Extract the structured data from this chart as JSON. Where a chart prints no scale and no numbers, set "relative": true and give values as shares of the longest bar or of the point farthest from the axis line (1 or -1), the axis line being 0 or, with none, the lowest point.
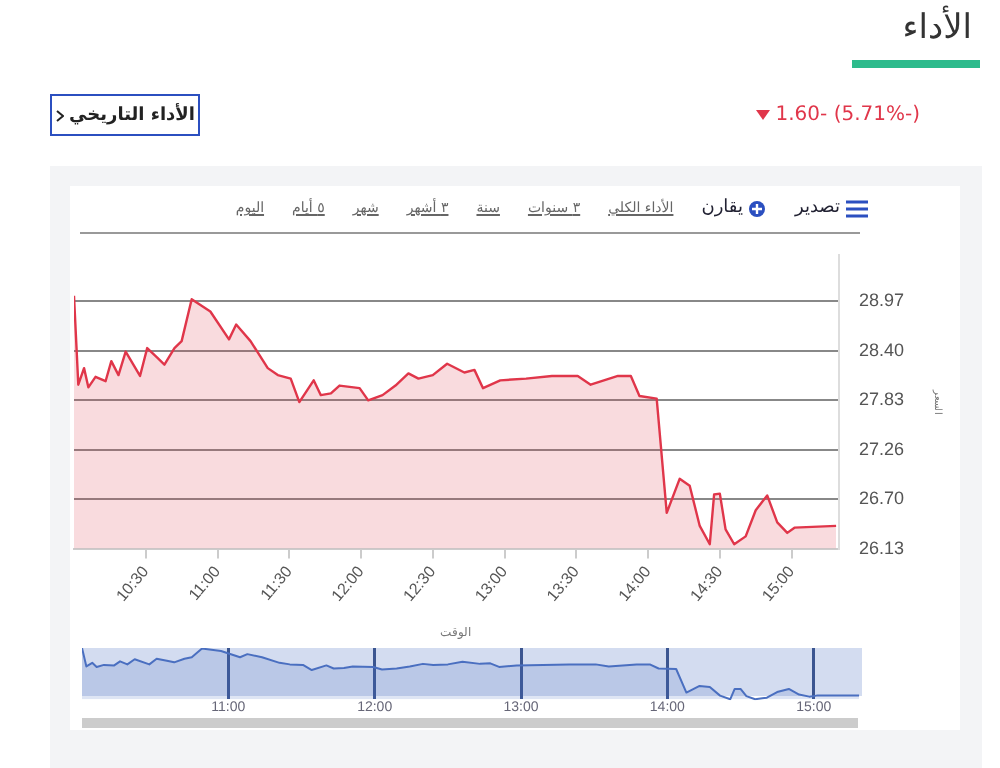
{
  "chart_data": [
    {
      "type": "area",
      "title": "الأداء",
      "subtitle": "1.60- (5.71%-)",
      "xlabel": "الوقت",
      "ylabel": "السعر",
      "annotations": [
        "الأداء التاريخي",
        "تصدير",
        "يقارن",
        "الأداء الكلي",
        "٣ سنوات",
        "سنة",
        "٣ أشهر",
        "شهر",
        "٥ أيام",
        "اليوم"
      ],
      "series": [
        {
          "color": "#e0364a",
          "x": [
            10.0,
            10.03,
            10.07,
            10.1,
            10.15,
            10.22,
            10.26,
            10.31,
            10.36,
            10.46,
            10.51,
            10.58,
            10.63,
            10.7,
            10.75,
            10.82,
            10.95,
            11.08,
            11.13,
            11.23,
            11.35,
            11.42,
            11.51,
            11.57,
            11.67,
            11.72,
            11.79,
            11.85,
            11.99,
            12.05,
            12.15,
            12.24,
            12.33,
            12.4,
            12.5,
            12.6,
            12.72,
            12.79,
            12.85,
            12.97,
            13.15,
            13.33,
            13.51,
            13.6,
            13.79,
            13.88,
            13.94,
            14.06,
            14.13,
            14.22,
            14.29,
            14.36,
            14.43,
            14.46,
            14.5,
            14.54,
            14.6,
            14.68,
            14.75,
            14.83,
            14.9,
            14.97,
            15.02,
            15.31
          ],
          "values": [
            29.03,
            28.01,
            28.2,
            27.98,
            28.1,
            28.05,
            28.28,
            28.12,
            28.39,
            28.11,
            28.43,
            28.32,
            28.24,
            28.43,
            28.51,
            28.99,
            28.85,
            28.53,
            28.7,
            28.51,
            28.2,
            28.12,
            28.08,
            27.81,
            28.06,
            27.89,
            27.91,
            28.0,
            27.97,
            27.83,
            27.89,
            28.0,
            28.14,
            28.08,
            28.12,
            28.25,
            28.15,
            28.18,
            27.97,
            28.06,
            28.08,
            28.11,
            28.11,
            28.01,
            28.11,
            28.11,
            27.88,
            27.85,
            26.54,
            26.93,
            26.85,
            26.39,
            26.18,
            26.75,
            26.76,
            26.35,
            26.18,
            26.27,
            26.57,
            26.74,
            26.43,
            26.31,
            26.37,
            26.39
          ]
        }
      ],
      "xlim": [
        10,
        15.33
      ],
      "xticks": [
        {
          "value": 10.5,
          "label": "10:30"
        },
        {
          "value": 11,
          "label": "11:00"
        },
        {
          "value": 11.5,
          "label": "11:30"
        },
        {
          "value": 12,
          "label": "12:00"
        },
        {
          "value": 12.5,
          "label": "12:30"
        },
        {
          "value": 13,
          "label": "13:00"
        },
        {
          "value": 13.5,
          "label": "13:30"
        },
        {
          "value": 14,
          "label": "14:00"
        },
        {
          "value": 14.5,
          "label": "14:30"
        },
        {
          "value": 15,
          "label": "15:00"
        }
      ],
      "ylim": [
        26.13,
        29.5
      ],
      "yticks": [
        26.13,
        {
          "value": 26.7,
          "label": "26.70"
        },
        27.26,
        27.83,
        {
          "value": 28.4,
          "label": "28.40"
        },
        28.97
      ],
      "grid": "y",
      "legend": false
    },
    {
      "type": "area",
      "tick_labels": "x",
      "series": [
        {
          "color": "#4a6fc0",
          "x": [
            10.0,
            10.03,
            10.07,
            10.1,
            10.15,
            10.22,
            10.26,
            10.31,
            10.36,
            10.46,
            10.51,
            10.58,
            10.63,
            10.7,
            10.75,
            10.82,
            10.95,
            11.08,
            11.13,
            11.23,
            11.35,
            11.42,
            11.51,
            11.57,
            11.67,
            11.72,
            11.79,
            11.85,
            11.99,
            12.05,
            12.15,
            12.24,
            12.33,
            12.4,
            12.5,
            12.6,
            12.72,
            12.79,
            12.85,
            12.97,
            13.15,
            13.33,
            13.51,
            13.6,
            13.79,
            13.88,
            13.94,
            14.06,
            14.13,
            14.22,
            14.29,
            14.36,
            14.43,
            14.46,
            14.5,
            14.54,
            14.6,
            14.68,
            14.75,
            14.83,
            14.9,
            14.97,
            15.02,
            15.31
          ],
          "values": [
            1,
            0.64,
            0.71,
            0.63,
            0.67,
            0.66,
            0.74,
            0.68,
            0.78,
            0.68,
            0.79,
            0.75,
            0.72,
            0.79,
            0.82,
            0.99,
            0.94,
            0.82,
            0.88,
            0.82,
            0.71,
            0.68,
            0.67,
            0.57,
            0.66,
            0.6,
            0.61,
            0.64,
            0.63,
            0.58,
            0.6,
            0.64,
            0.69,
            0.67,
            0.68,
            0.73,
            0.69,
            0.7,
            0.63,
            0.66,
            0.67,
            0.68,
            0.68,
            0.64,
            0.68,
            0.68,
            0.6,
            0.59,
            0.13,
            0.26,
            0.24,
            0.07,
            0,
            0.2,
            0.2,
            0.06,
            0,
            0.03,
            0.14,
            0.2,
            0.09,
            0.05,
            0.07,
            0.07
          ]
        }
      ],
      "xlim": [
        10,
        15.33
      ],
      "xticks": [
        {
          "value": 11,
          "label": "11:00"
        },
        {
          "value": 12,
          "label": "12:00"
        },
        {
          "value": 13,
          "label": "13:00"
        },
        {
          "value": 14,
          "label": "14:00"
        },
        {
          "value": 15,
          "label": "15:00"
        }
      ],
      "relative": true,
      "grid": "x",
      "legend": false
    }
  ]
}
